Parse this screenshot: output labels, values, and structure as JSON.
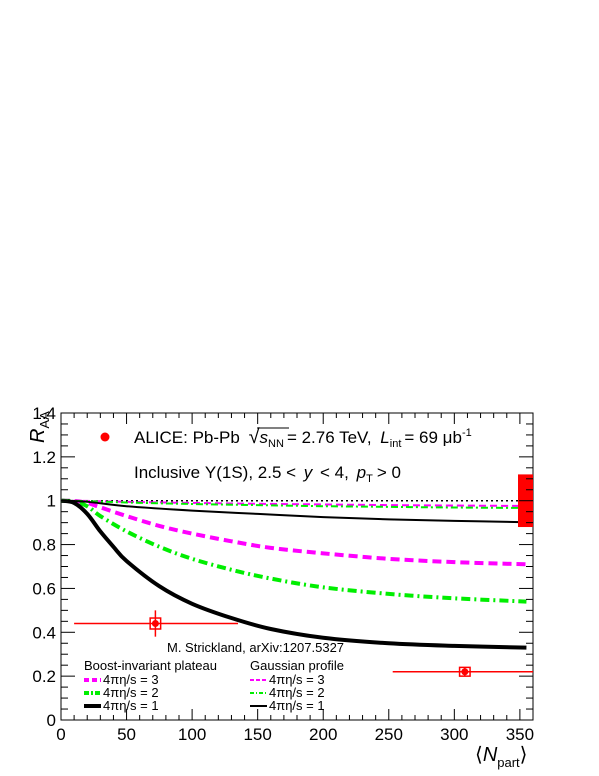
{
  "chart_data": {
    "type": "line",
    "xlabel": {
      "main": "N",
      "sub": "part"
    },
    "ylabel": {
      "main": "R",
      "sub": "AA"
    },
    "xlim": [
      0,
      360
    ],
    "ylim": [
      0,
      1.4
    ],
    "x_ticks": [
      0,
      50,
      100,
      150,
      200,
      250,
      300,
      350
    ],
    "y_ticks": [
      0,
      0.2,
      0.4,
      0.6,
      0.8,
      1,
      1.2,
      1.4
    ],
    "x_tick_labels": [
      "0",
      "50",
      "100",
      "150",
      "200",
      "250",
      "300",
      "350"
    ],
    "y_tick_labels": [
      "0",
      "0.2",
      "0.4",
      "0.6",
      "0.8",
      "1",
      "1.2",
      "1.4"
    ],
    "grid": false,
    "reference_line": {
      "y": 1,
      "style": "dotted",
      "color": "#000000"
    },
    "legend_data": {
      "marker_color": "#ff0000",
      "prefix": "ALICE: Pb-Pb",
      "sqrt_s": "s",
      "sqrt_sub": "NN",
      "energy": "= 2.76 TeV,",
      "lumi_symbol": "L",
      "lumi_sub": "int",
      "lumi_value": "= 69 μb",
      "lumi_exp": "-1"
    },
    "selection": {
      "prefix": "Inclusive Υ(1S), 2.5 <",
      "y_symbol": "y",
      "mid": "< 4,",
      "pt_symbol": "p",
      "pt_sub": "T",
      "suffix": "> 0"
    },
    "model_credit": "M. Strickland, arXiv:1207.5327",
    "legend_groups": [
      {
        "title": "Boost-invariant plateau"
      },
      {
        "title": "Gaussian profile"
      }
    ],
    "series": [
      {
        "name": "4πη/s = 3",
        "group": "Boost-invariant plateau",
        "color": "#ff00ff",
        "style": "dashed",
        "width": "thick",
        "x": [
          0,
          10,
          20,
          30,
          50,
          75,
          100,
          130,
          160,
          200,
          250,
          300,
          355
        ],
        "y": [
          1.0,
          0.999,
          0.99,
          0.97,
          0.93,
          0.885,
          0.85,
          0.815,
          0.785,
          0.76,
          0.735,
          0.72,
          0.71
        ]
      },
      {
        "name": "4πη/s = 2",
        "group": "Boost-invariant plateau",
        "color": "#00ee00",
        "style": "dashdot",
        "width": "thick",
        "x": [
          0,
          10,
          20,
          30,
          50,
          75,
          100,
          130,
          160,
          200,
          250,
          300,
          355
        ],
        "y": [
          1.0,
          0.996,
          0.975,
          0.93,
          0.86,
          0.79,
          0.735,
          0.685,
          0.645,
          0.605,
          0.575,
          0.555,
          0.54
        ]
      },
      {
        "name": "4πη/s = 1",
        "group": "Boost-invariant plateau",
        "color": "#000000",
        "style": "solid",
        "width": "thick",
        "x": [
          0,
          10,
          20,
          30,
          40,
          50,
          75,
          100,
          130,
          160,
          200,
          250,
          300,
          355
        ],
        "y": [
          1.0,
          0.99,
          0.94,
          0.86,
          0.79,
          0.725,
          0.61,
          0.53,
          0.465,
          0.415,
          0.375,
          0.35,
          0.338,
          0.33
        ]
      },
      {
        "name": "4πη/s = 3",
        "group": "Gaussian profile",
        "color": "#ff00ff",
        "style": "dashed",
        "width": "thin",
        "x": [
          0,
          20,
          50,
          100,
          150,
          200,
          250,
          300,
          355
        ],
        "y": [
          1.0,
          0.999,
          0.995,
          0.99,
          0.986,
          0.983,
          0.98,
          0.978,
          0.976
        ]
      },
      {
        "name": "4πη/s = 2",
        "group": "Gaussian profile",
        "color": "#00ee00",
        "style": "dashdot",
        "width": "thin",
        "x": [
          0,
          20,
          50,
          100,
          150,
          200,
          250,
          300,
          355
        ],
        "y": [
          1.0,
          0.998,
          0.992,
          0.985,
          0.98,
          0.975,
          0.972,
          0.969,
          0.967
        ]
      },
      {
        "name": "4πη/s = 1",
        "group": "Gaussian profile",
        "color": "#000000",
        "style": "solid",
        "width": "thin",
        "x": [
          0,
          20,
          50,
          100,
          150,
          200,
          250,
          300,
          355
        ],
        "y": [
          1.0,
          0.995,
          0.975,
          0.955,
          0.94,
          0.925,
          0.915,
          0.908,
          0.902
        ]
      }
    ],
    "data_points": [
      {
        "x": 72,
        "y": 0.44,
        "x_err": [
          62,
          63
        ],
        "y_stat": 0.06,
        "y_sys": 0.025,
        "x_sys": 4
      },
      {
        "x": 308,
        "y": 0.22,
        "x_err": [
          55,
          52
        ],
        "y_stat": 0.02,
        "y_sys": 0.02,
        "x_sys": 4
      }
    ],
    "global_uncertainty": {
      "x": 352,
      "y": 1.0,
      "err": 0.12,
      "color": "#ff0000"
    }
  }
}
